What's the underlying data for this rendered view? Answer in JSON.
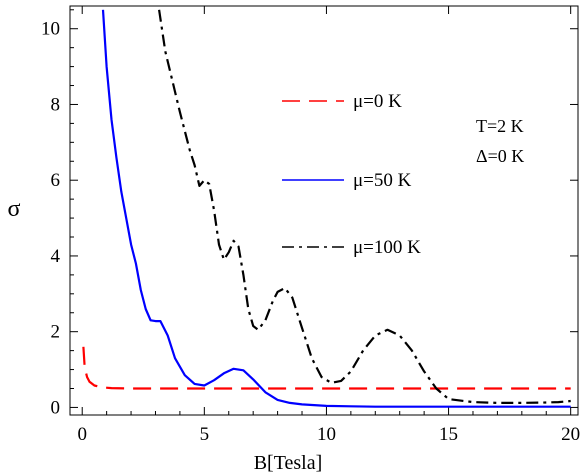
{
  "chart_data": {
    "type": "line",
    "xlabel": "B[Tesla]",
    "ylabel": "σ",
    "xlim": [
      -0.5,
      20.3
    ],
    "ylim": [
      -0.2,
      10.6
    ],
    "x_ticks": [
      0,
      5,
      10,
      15,
      20
    ],
    "y_ticks": [
      0,
      2,
      4,
      6,
      8,
      10
    ],
    "grid": false,
    "legend_position": "top-right",
    "annotations": [
      "T=2 K",
      "Δ=0 K"
    ],
    "series": [
      {
        "name": "μ=0 K",
        "color": "#ff0000",
        "dash": "long-dash",
        "x": [
          0.05,
          0.1,
          0.2,
          0.3,
          0.5,
          0.8,
          1.2,
          2,
          5,
          10,
          15,
          20
        ],
        "y": [
          1.6,
          1.05,
          0.8,
          0.68,
          0.58,
          0.53,
          0.51,
          0.5,
          0.5,
          0.5,
          0.5,
          0.5
        ]
      },
      {
        "name": "μ=50 K",
        "color": "#0000ff",
        "dash": "solid",
        "x": [
          0.85,
          1.0,
          1.2,
          1.4,
          1.6,
          1.8,
          2.0,
          2.2,
          2.4,
          2.6,
          2.8,
          3.0,
          3.2,
          3.5,
          3.8,
          4.2,
          4.6,
          5.0,
          5.4,
          5.8,
          6.2,
          6.6,
          7.0,
          7.5,
          8.0,
          8.5,
          9.0,
          10,
          11,
          12,
          13,
          14,
          15,
          16,
          17,
          18,
          19,
          20
        ],
        "y": [
          10.5,
          9.0,
          7.6,
          6.6,
          5.7,
          5.0,
          4.3,
          3.8,
          3.1,
          2.6,
          2.3,
          2.28,
          2.28,
          1.9,
          1.3,
          0.85,
          0.62,
          0.58,
          0.72,
          0.9,
          1.02,
          0.98,
          0.74,
          0.4,
          0.2,
          0.12,
          0.08,
          0.04,
          0.03,
          0.02,
          0.02,
          0.02,
          0.02,
          0.02,
          0.02,
          0.02,
          0.02,
          0.02
        ]
      },
      {
        "name": "μ=100 K",
        "color": "#000000",
        "dash": "dash-dot",
        "x": [
          3.15,
          3.4,
          3.7,
          4.0,
          4.2,
          4.4,
          4.6,
          4.8,
          5.0,
          5.2,
          5.4,
          5.6,
          5.8,
          6.0,
          6.2,
          6.4,
          6.6,
          6.8,
          7.0,
          7.2,
          7.5,
          7.8,
          8.0,
          8.3,
          8.6,
          9.0,
          9.4,
          9.8,
          10.2,
          10.6,
          11.0,
          11.5,
          12.0,
          12.5,
          13.0,
          13.5,
          14.0,
          14.5,
          15.0,
          16.0,
          17.0,
          18.0,
          19.0,
          19.5,
          20.0
        ],
        "y": [
          10.5,
          9.4,
          8.6,
          7.8,
          7.3,
          6.8,
          6.4,
          5.85,
          6.0,
          5.9,
          5.2,
          4.3,
          3.9,
          4.1,
          4.4,
          4.25,
          3.5,
          2.6,
          2.15,
          2.05,
          2.3,
          2.8,
          3.05,
          3.15,
          2.9,
          2.1,
          1.3,
          0.8,
          0.65,
          0.7,
          0.95,
          1.5,
          1.9,
          2.05,
          1.9,
          1.5,
          0.95,
          0.5,
          0.22,
          0.14,
          0.12,
          0.12,
          0.13,
          0.14,
          0.17
        ]
      }
    ]
  }
}
